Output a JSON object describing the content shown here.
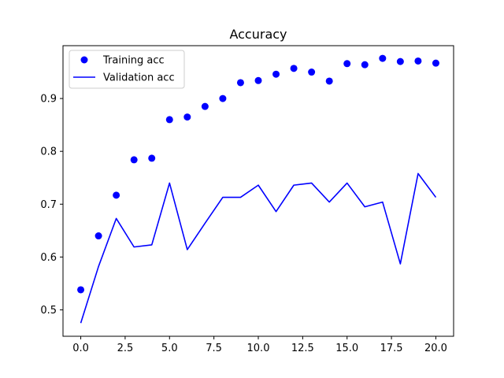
{
  "chart_data": {
    "type": "line",
    "title": "Accuracy",
    "xlabel": "",
    "ylabel": "",
    "xlim": [
      -1.0,
      21.0
    ],
    "ylim": [
      0.45,
      1.0
    ],
    "x_ticks": [
      0.0,
      2.5,
      5.0,
      7.5,
      10.0,
      12.5,
      15.0,
      17.5,
      20.0
    ],
    "x_tick_labels": [
      "0.0",
      "2.5",
      "5.0",
      "7.5",
      "10.0",
      "12.5",
      "15.0",
      "17.5",
      "20.0"
    ],
    "y_ticks": [
      0.5,
      0.6,
      0.7,
      0.8,
      0.9
    ],
    "y_tick_labels": [
      "0.5",
      "0.6",
      "0.7",
      "0.8",
      "0.9"
    ],
    "grid": false,
    "legend_position": "top-left",
    "series": [
      {
        "name": "Training acc",
        "style": "markers",
        "color": "#0000ff",
        "x": [
          0,
          1,
          2,
          3,
          4,
          5,
          6,
          7,
          8,
          9,
          10,
          11,
          12,
          13,
          14,
          15,
          16,
          17,
          18,
          19,
          20
        ],
        "values": [
          0.538,
          0.64,
          0.717,
          0.784,
          0.787,
          0.86,
          0.865,
          0.885,
          0.9,
          0.93,
          0.934,
          0.946,
          0.957,
          0.95,
          0.933,
          0.966,
          0.964,
          0.976,
          0.97,
          0.971,
          0.967
        ]
      },
      {
        "name": "Validation acc",
        "style": "line",
        "color": "#0000ff",
        "x": [
          0,
          1,
          2,
          3,
          4,
          5,
          6,
          7,
          8,
          9,
          10,
          11,
          12,
          13,
          14,
          15,
          16,
          17,
          18,
          19,
          20
        ],
        "values": [
          0.475,
          0.582,
          0.673,
          0.619,
          0.623,
          0.74,
          0.614,
          0.664,
          0.713,
          0.713,
          0.736,
          0.686,
          0.736,
          0.74,
          0.704,
          0.74,
          0.695,
          0.704,
          0.587,
          0.758,
          0.713
        ]
      }
    ]
  }
}
